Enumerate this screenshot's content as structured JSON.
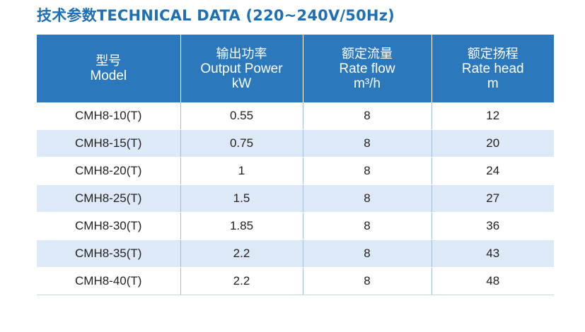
{
  "title": "技术参数TECHNICAL DATA (220~240V/50Hz)",
  "headers": [
    {
      "cn": "型号",
      "en": "Model",
      "unit": ""
    },
    {
      "cn": "输出功率",
      "en": "Output Power",
      "unit": "kW"
    },
    {
      "cn": "额定流量",
      "en": "Rate flow",
      "unit": "m³/h"
    },
    {
      "cn": "额定扬程",
      "en": "Rate head",
      "unit": "m"
    }
  ],
  "rows": [
    [
      "CMH8-10(T)",
      "0.55",
      "8",
      "12"
    ],
    [
      "CMH8-15(T)",
      "0.75",
      "8",
      "20"
    ],
    [
      "CMH8-20(T)",
      "1",
      "8",
      "24"
    ],
    [
      "CMH8-25(T)",
      "1.5",
      "8",
      "27"
    ],
    [
      "CMH8-30(T)",
      "1.85",
      "8",
      "36"
    ],
    [
      "CMH8-35(T)",
      "2.2",
      "8",
      "43"
    ],
    [
      "CMH8-40(T)",
      "2.2",
      "8",
      "48"
    ]
  ],
  "colors": {
    "title": "#1e6fb4",
    "header_bg": "#2b78bd",
    "row_alt_bg": "#dde9f6"
  }
}
